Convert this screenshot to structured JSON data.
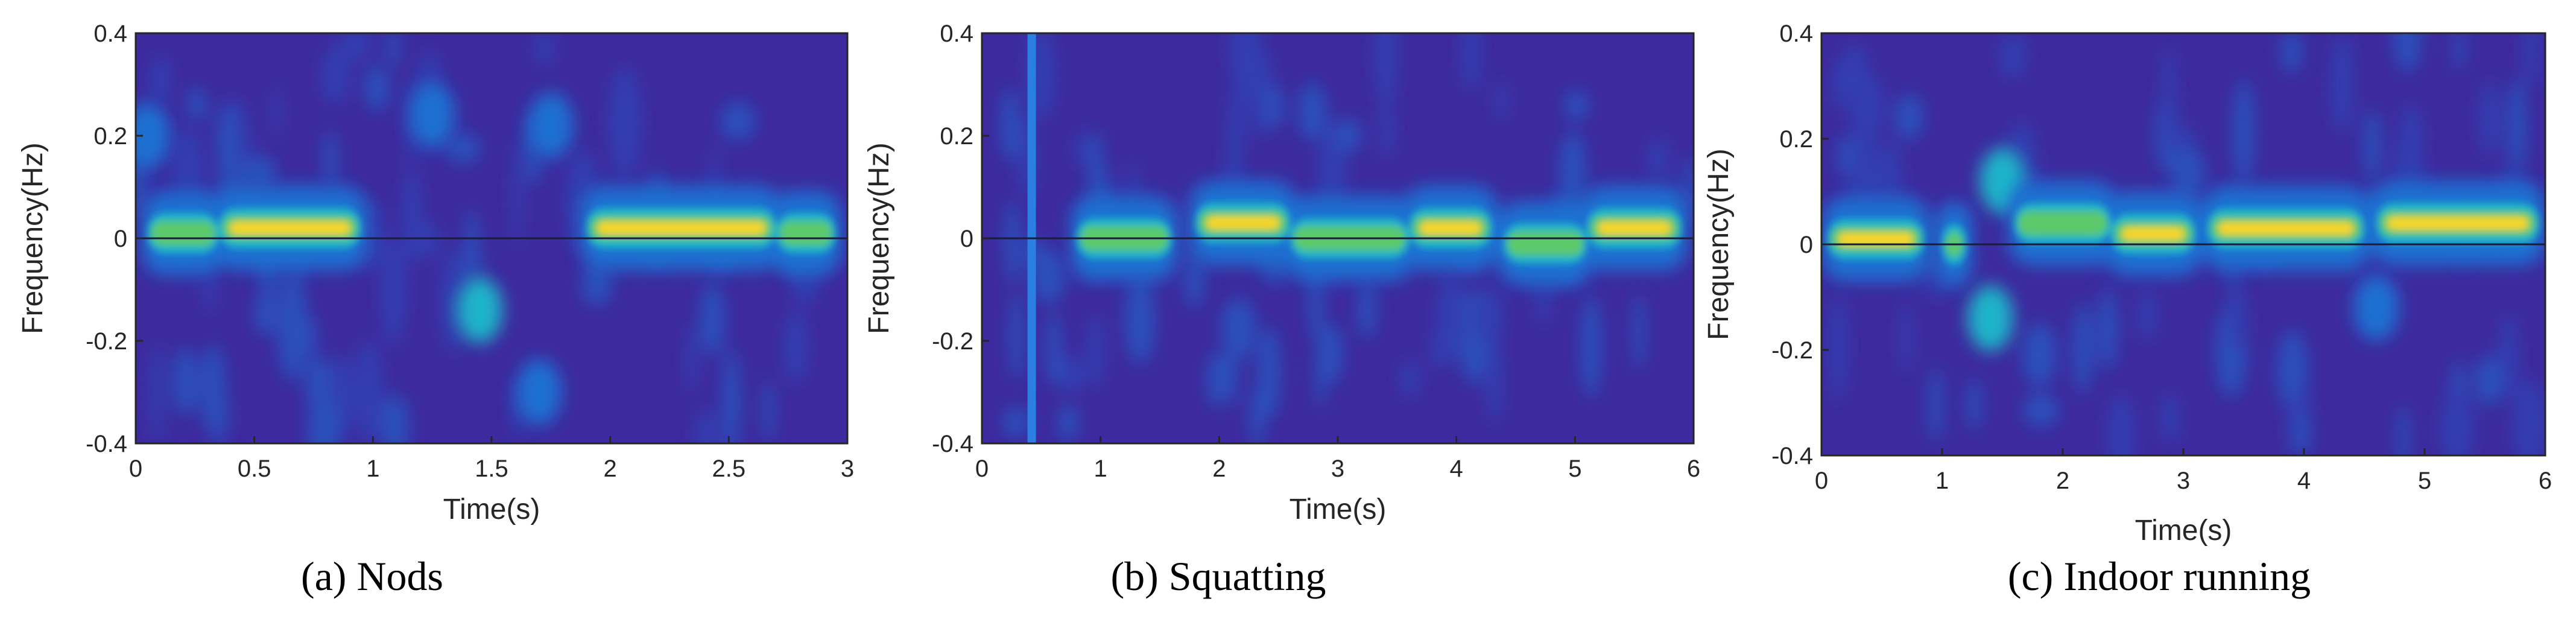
{
  "chart_data": [
    {
      "type": "heatmap",
      "caption": "(a) Nods",
      "xlabel": "Time(s)",
      "ylabel": "Frequency(Hz)",
      "xlim": [
        0,
        3
      ],
      "ylim": [
        -0.4,
        0.4
      ],
      "xticks": [
        0,
        0.5,
        1,
        1.5,
        2,
        2.5,
        3
      ],
      "yticks": [
        0.4,
        0.2,
        0,
        -0.2,
        -0.4
      ],
      "xtick_labels": [
        "0",
        "0.5",
        "1",
        "1.5",
        "2",
        "2.5",
        "3"
      ],
      "ytick_labels": [
        "0.4",
        "0.2",
        "0",
        "-0.2",
        "-0.4"
      ],
      "zero_line": 0,
      "hot_segments": [
        {
          "t0": 0.35,
          "t1": 0.95,
          "f": 0.02,
          "level": 1.0
        },
        {
          "t0": 1.9,
          "t1": 2.7,
          "f": 0.02,
          "level": 1.0
        },
        {
          "t0": 0.05,
          "t1": 0.35,
          "f": 0.01,
          "level": 0.6
        },
        {
          "t0": 2.7,
          "t1": 2.95,
          "f": 0.01,
          "level": 0.6
        }
      ],
      "blobs": [
        {
          "t": 1.45,
          "f": -0.14,
          "level": 0.5
        },
        {
          "t": 1.75,
          "f": 0.22,
          "level": 0.45
        },
        {
          "t": 1.25,
          "f": 0.24,
          "level": 0.35
        },
        {
          "t": 1.7,
          "f": -0.3,
          "level": 0.4
        },
        {
          "t": 0.05,
          "f": 0.2,
          "level": 0.3
        }
      ]
    },
    {
      "type": "heatmap",
      "caption": "(b) Squatting",
      "xlabel": "Time(s)",
      "ylabel": "Frequency(Hz)",
      "xlim": [
        0,
        6
      ],
      "ylim": [
        -0.4,
        0.4
      ],
      "xticks": [
        0,
        1,
        2,
        3,
        4,
        5,
        6
      ],
      "yticks": [
        0.4,
        0.2,
        0,
        -0.2,
        -0.4
      ],
      "xtick_labels": [
        "0",
        "1",
        "2",
        "3",
        "4",
        "5",
        "6"
      ],
      "ytick_labels": [
        "0.4",
        "0.2",
        "0",
        "-0.2",
        "-0.4"
      ],
      "zero_line": 0,
      "vertical_band_t": 0.42,
      "hot_segments": [
        {
          "t0": 0.8,
          "t1": 1.6,
          "f": 0.0,
          "level": 0.65
        },
        {
          "t0": 1.8,
          "t1": 2.6,
          "f": 0.03,
          "level": 1.0
        },
        {
          "t0": 2.6,
          "t1": 3.6,
          "f": 0.0,
          "level": 0.65
        },
        {
          "t0": 3.6,
          "t1": 4.3,
          "f": 0.02,
          "level": 0.9
        },
        {
          "t0": 4.4,
          "t1": 5.1,
          "f": -0.01,
          "level": 0.7
        },
        {
          "t0": 5.1,
          "t1": 5.9,
          "f": 0.02,
          "level": 0.95
        }
      ],
      "blobs": []
    },
    {
      "type": "heatmap",
      "caption": "(c) Indoor running",
      "xlabel": "Time(s)",
      "ylabel": "Frequency(Hz)",
      "xlim": [
        0,
        6
      ],
      "ylim": [
        -0.4,
        0.4
      ],
      "xticks": [
        0,
        1,
        2,
        3,
        4,
        5,
        6
      ],
      "yticks": [
        0.4,
        0.2,
        0,
        -0.2,
        -0.4
      ],
      "xtick_labels": [
        "0",
        "1",
        "2",
        "3",
        "4",
        "5",
        "6"
      ],
      "ytick_labels": [
        "0.4",
        "0.2",
        "0",
        "-0.2",
        "-0.4"
      ],
      "zero_line": 0,
      "hot_segments": [
        {
          "t0": 0.05,
          "t1": 0.85,
          "f": 0.01,
          "level": 0.95
        },
        {
          "t0": 1.0,
          "t1": 1.2,
          "f": 0.0,
          "level": 0.6
        },
        {
          "t0": 1.6,
          "t1": 2.4,
          "f": 0.04,
          "level": 0.7
        },
        {
          "t0": 2.4,
          "t1": 3.1,
          "f": 0.02,
          "level": 0.95
        },
        {
          "t0": 3.2,
          "t1": 4.5,
          "f": 0.03,
          "level": 0.9
        },
        {
          "t0": 4.6,
          "t1": 5.95,
          "f": 0.04,
          "level": 0.9
        }
      ],
      "blobs": [
        {
          "t": 1.4,
          "f": -0.14,
          "level": 0.5
        },
        {
          "t": 1.5,
          "f": 0.12,
          "level": 0.5
        },
        {
          "t": 4.6,
          "f": -0.12,
          "level": 0.4
        }
      ]
    }
  ]
}
